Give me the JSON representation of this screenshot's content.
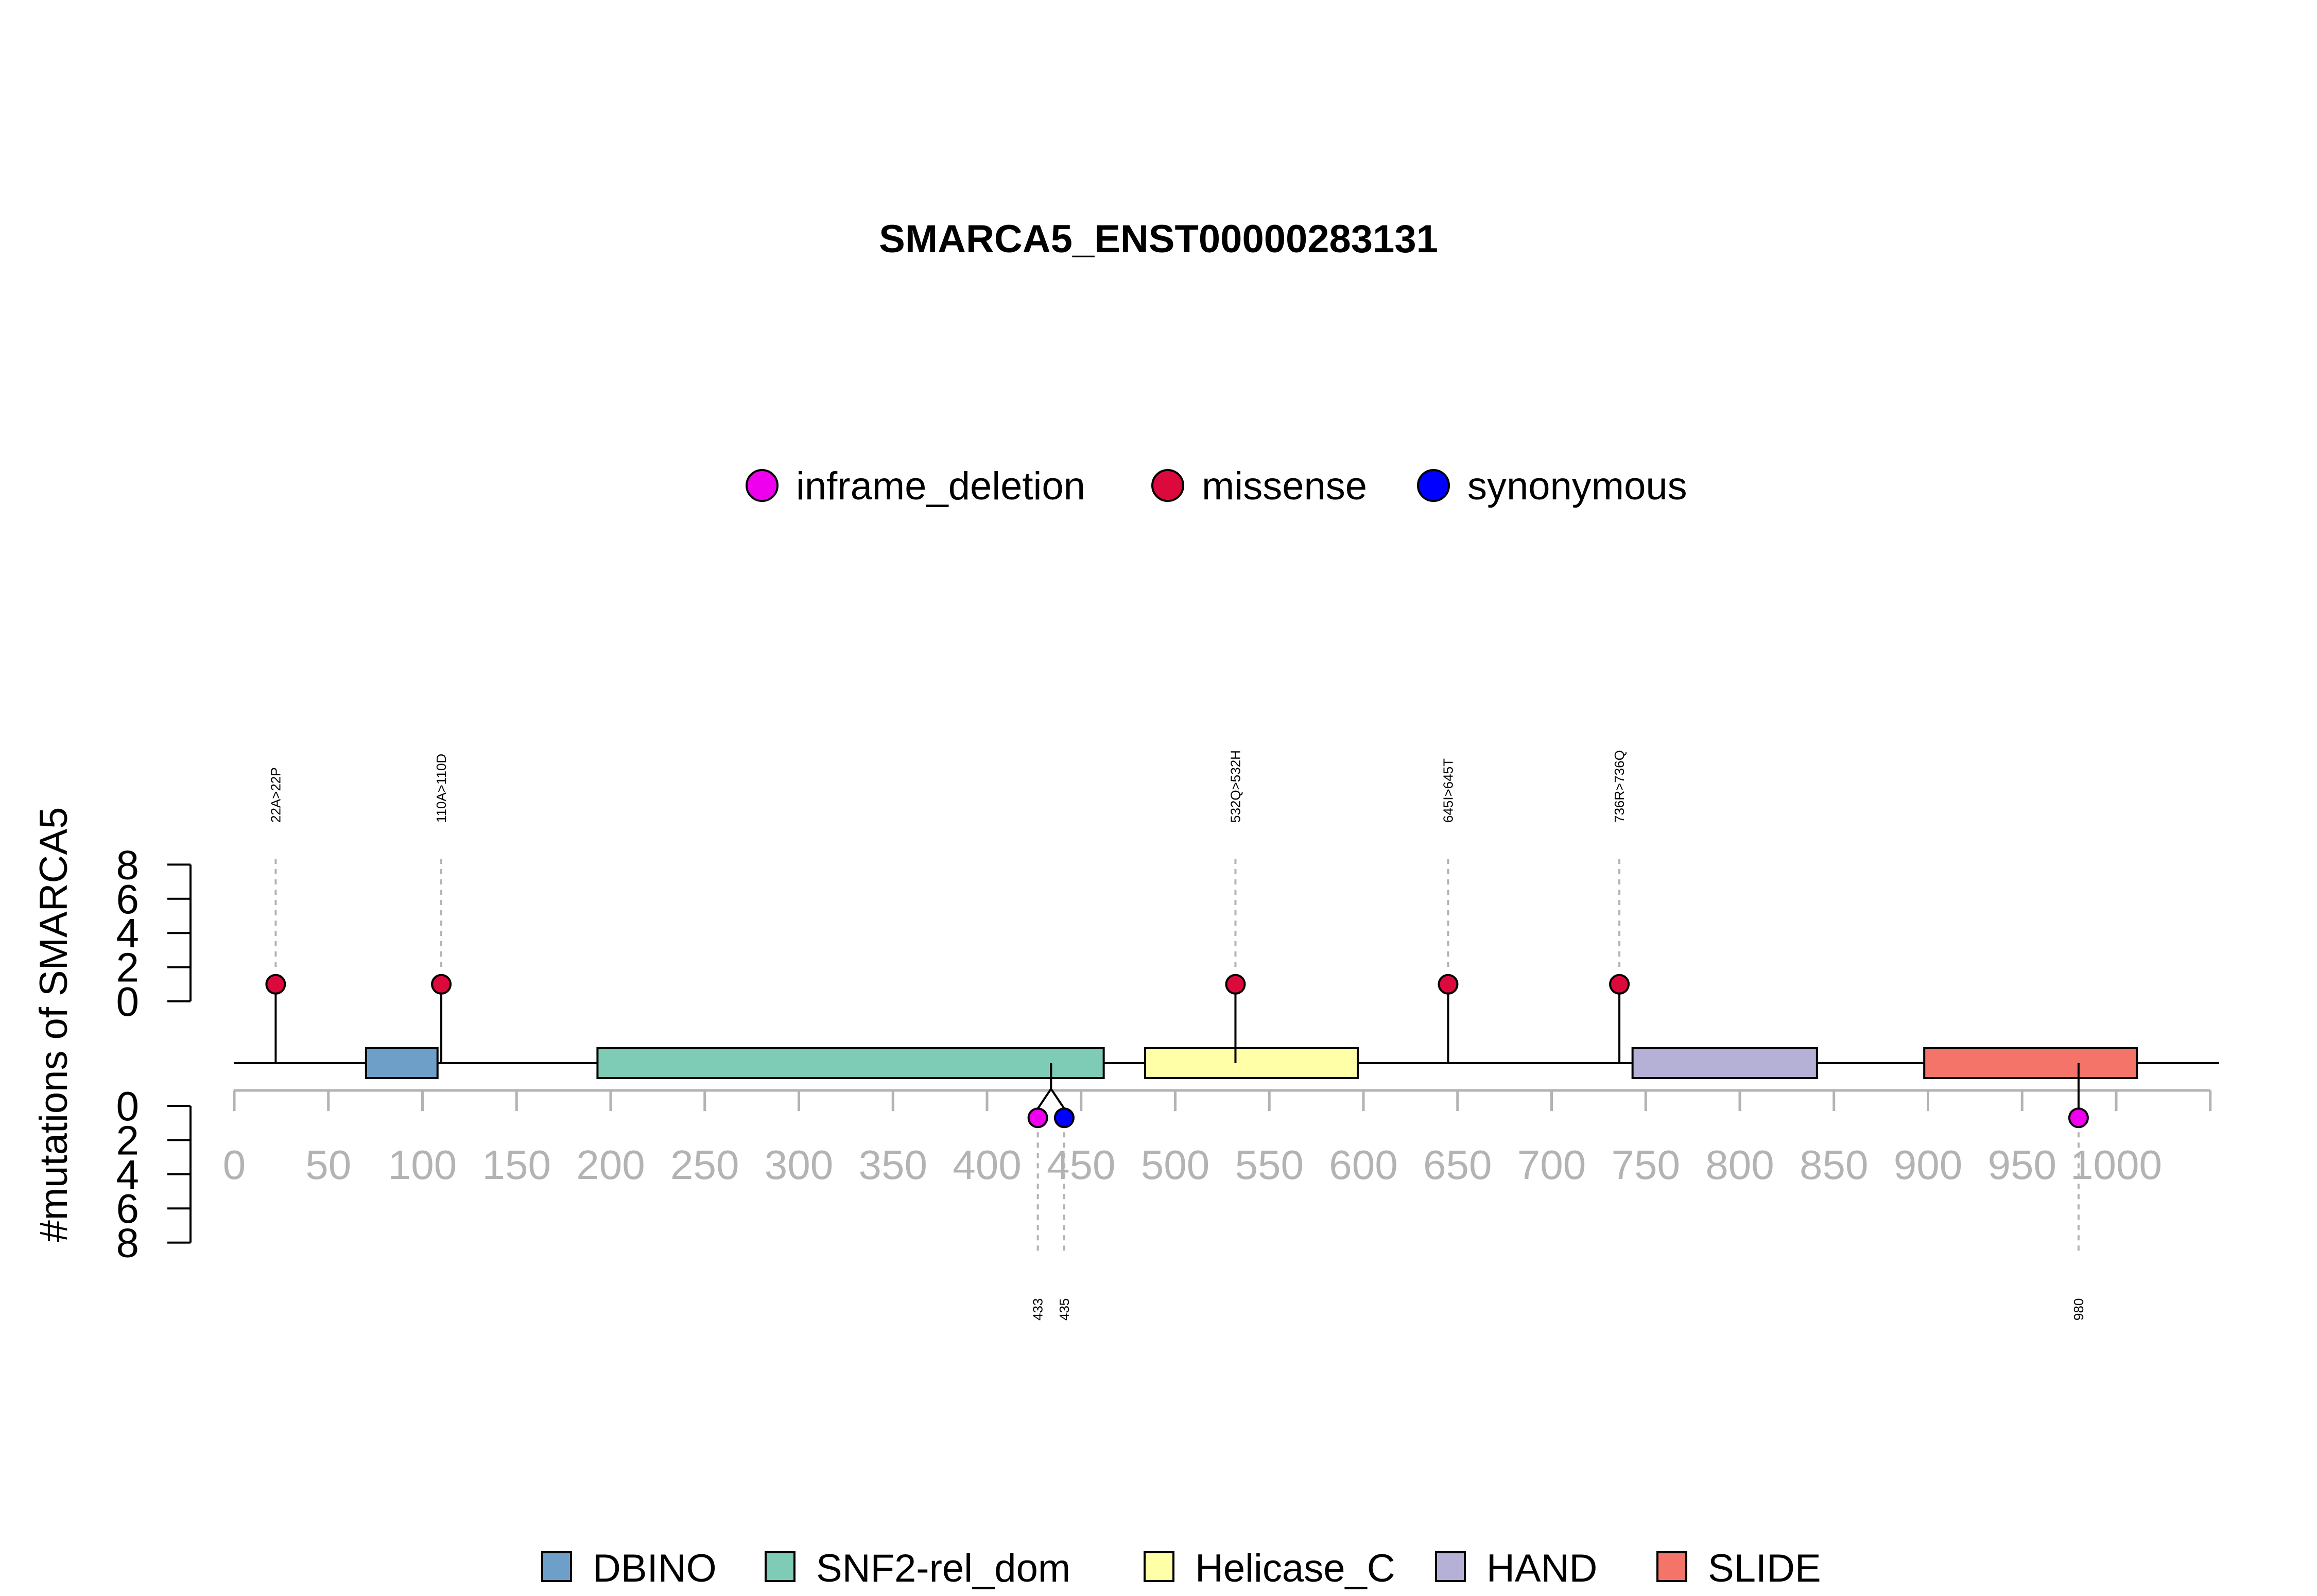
{
  "chart_data": {
    "type": "lollipop",
    "title": "SMARCA5_ENST00000283131",
    "ylabel": "#mutations of SMARCA5",
    "xlim": [
      0,
      1050
    ],
    "x_ticks": [
      0,
      50,
      100,
      150,
      200,
      250,
      300,
      350,
      400,
      450,
      500,
      550,
      600,
      650,
      700,
      750,
      800,
      850,
      900,
      950,
      1000
    ],
    "y_ticks_top": [
      0,
      2,
      4,
      6,
      8
    ],
    "y_ticks_bottom": [
      0,
      2,
      4,
      6,
      8
    ],
    "mutation_types": [
      {
        "name": "inframe_deletion",
        "color": "#EE00EE"
      },
      {
        "name": "missense",
        "color": "#DC0A3C"
      },
      {
        "name": "synonymous",
        "color": "#0000FF"
      }
    ],
    "domains": [
      {
        "name": "DBINO",
        "start": 70,
        "end": 108,
        "color": "#6E9FC8"
      },
      {
        "name": "SNF2-rel_dom",
        "start": 193,
        "end": 462,
        "color": "#7FCCB6"
      },
      {
        "name": "Helicase_C",
        "start": 484,
        "end": 597,
        "color": "#FFFFA8"
      },
      {
        "name": "HAND",
        "start": 743,
        "end": 841,
        "color": "#B4B0D6"
      },
      {
        "name": "SLIDE",
        "start": 898,
        "end": 1011,
        "color": "#F5746A"
      }
    ],
    "mutations_top": [
      {
        "position": 22,
        "count": 1,
        "type": "missense",
        "label": "22A>22P"
      },
      {
        "position": 110,
        "count": 1,
        "type": "missense",
        "label": "110A>110D"
      },
      {
        "position": 532,
        "count": 1,
        "type": "missense",
        "label": "532Q>532H"
      },
      {
        "position": 645,
        "count": 1,
        "type": "missense",
        "label": "645I>645T"
      },
      {
        "position": 736,
        "count": 1,
        "type": "missense",
        "label": "736R>736Q"
      }
    ],
    "mutations_bottom": [
      {
        "position": 433,
        "count": 1,
        "type": "inframe_deletion",
        "label": "433"
      },
      {
        "position": 435,
        "count": 1,
        "type": "synonymous",
        "label": "435"
      },
      {
        "position": 980,
        "count": 1,
        "type": "inframe_deletion",
        "label": "980"
      }
    ]
  }
}
